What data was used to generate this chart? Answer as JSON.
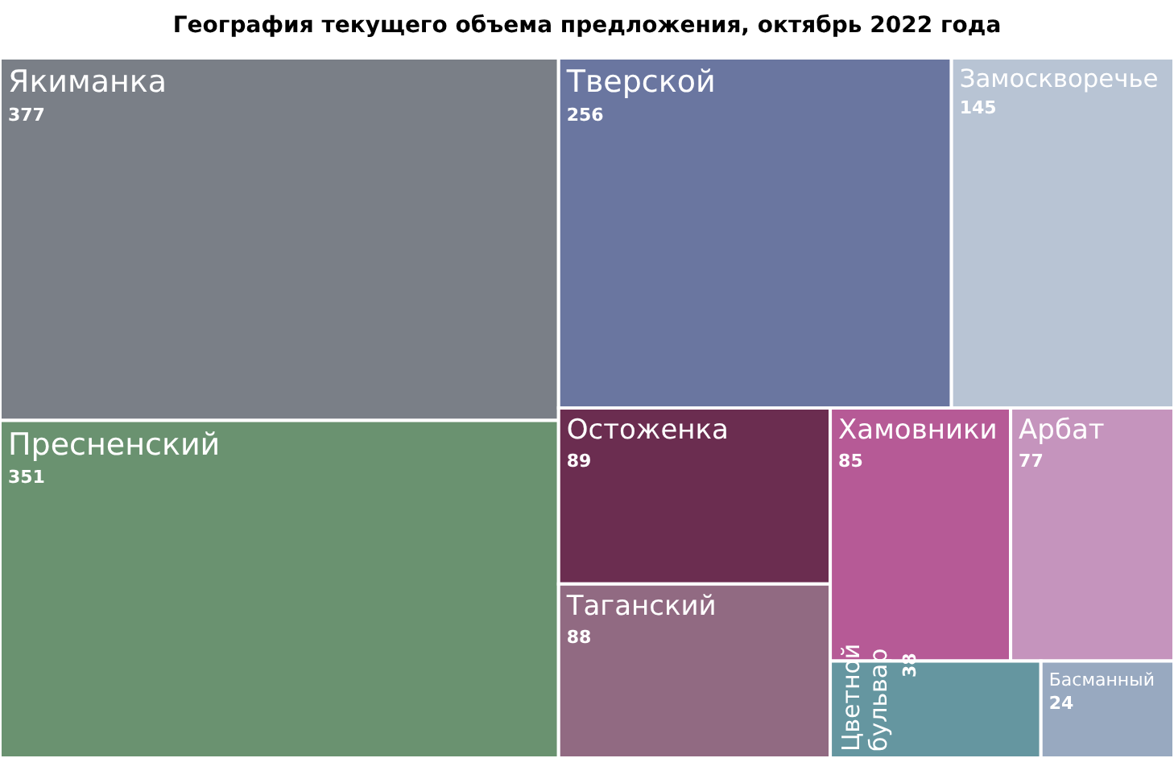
{
  "chart_data": {
    "type": "other",
    "title": "География текущего объема предложения, октябрь 2022 года",
    "categories": [
      "Якиманка",
      "Пресненский",
      "Тверской",
      "Замоскворечье",
      "Остоженка",
      "Таганский",
      "Хамовники",
      "Арбат",
      "Цветной бульвар",
      "Басманный"
    ],
    "values": [
      377,
      351,
      256,
      145,
      89,
      88,
      85,
      77,
      38,
      24
    ],
    "value_labels": [
      "377",
      "351",
      "256",
      "145",
      "89",
      "88",
      "85",
      "77",
      "38",
      "24"
    ],
    "colors": [
      "#7a7f87",
      "#6a9270",
      "#6a76a0",
      "#b8c4d4",
      "#6b2d50",
      "#916a82",
      "#b65a96",
      "#c594bd",
      "#6596a0",
      "#98a9c0"
    ]
  }
}
